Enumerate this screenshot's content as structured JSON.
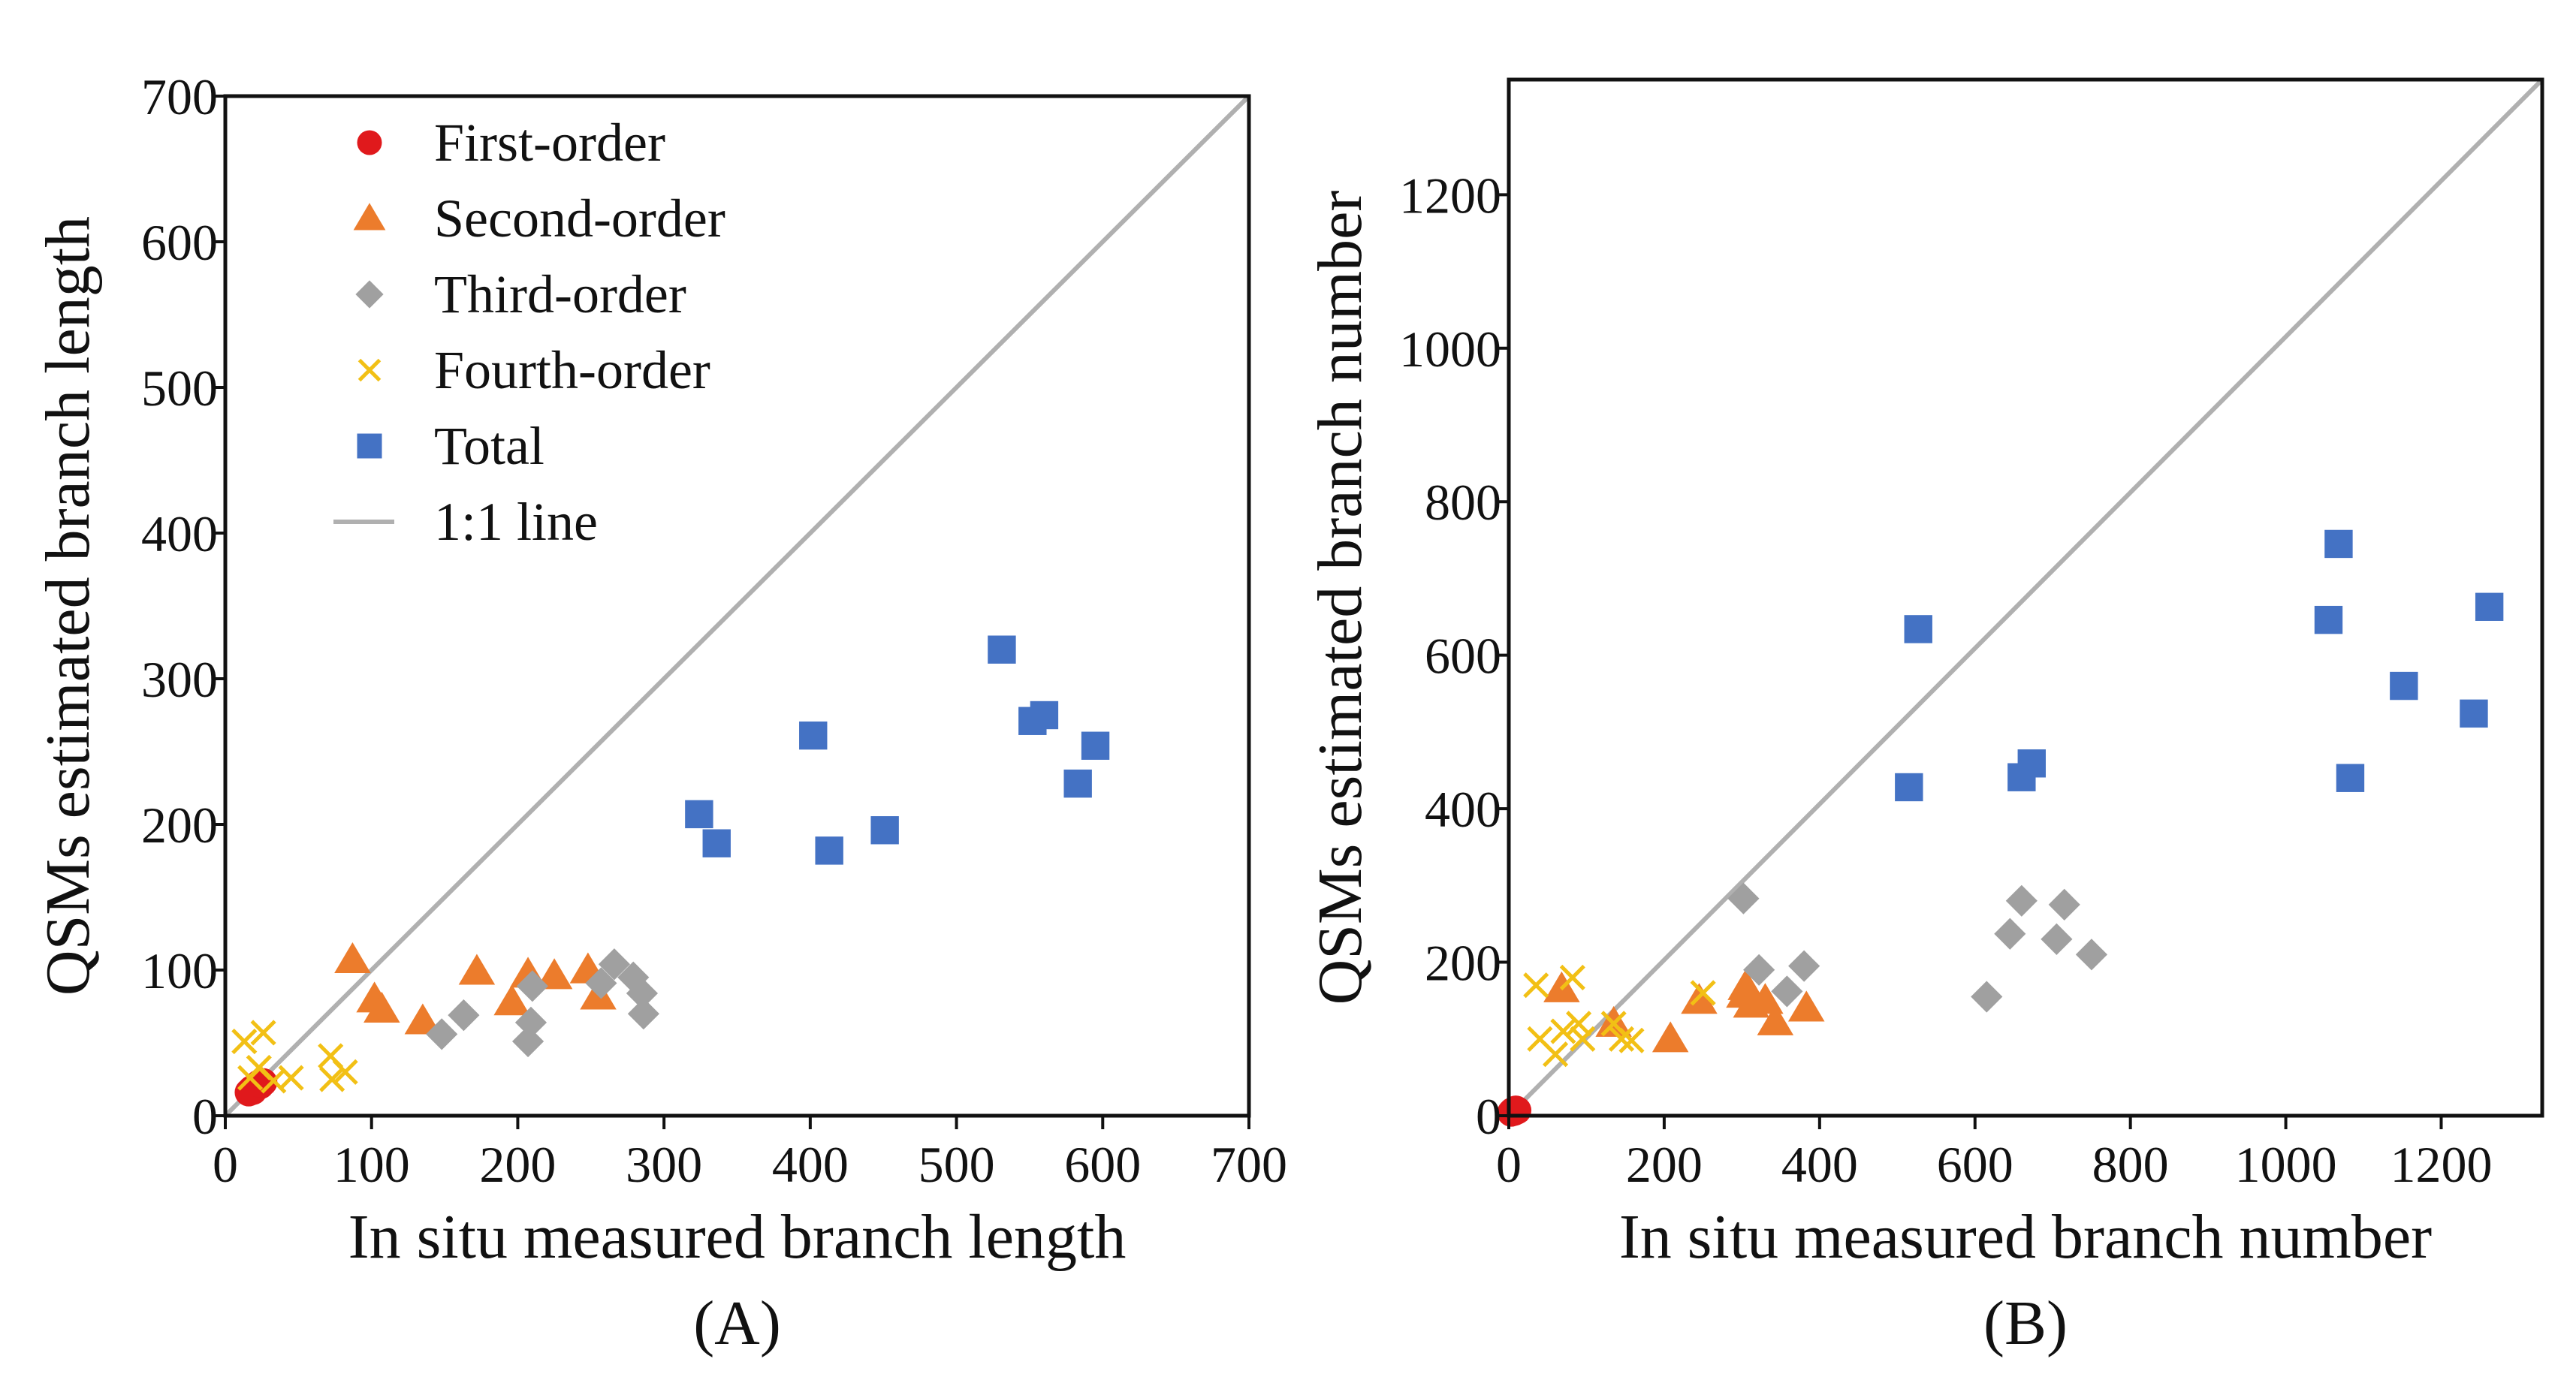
{
  "chart_data": [
    {
      "type": "scatter",
      "panel_label": "(A)",
      "xlabel": "In situ measured branch length",
      "ylabel": "QSMs estimated branch length",
      "xlim": [
        0,
        700
      ],
      "ylim": [
        0,
        700
      ],
      "xticks": [
        0,
        100,
        200,
        300,
        400,
        500,
        600,
        700
      ],
      "yticks": [
        0,
        100,
        200,
        300,
        400,
        500,
        600,
        700
      ],
      "reference_line": {
        "label": "1:1 line",
        "from": [
          0,
          0
        ],
        "to": [
          700,
          700
        ],
        "color": "#b0b0b0"
      },
      "legend": {
        "placement": "top-left",
        "entries": [
          {
            "label": "First-order",
            "marker": "circle",
            "color": "#e0191c"
          },
          {
            "label": "Second-order",
            "marker": "triangle",
            "color": "#ec7c2c"
          },
          {
            "label": "Third-order",
            "marker": "diamond",
            "color": "#a0a0a0"
          },
          {
            "label": "Fourth-order",
            "marker": "cross",
            "color": "#f2c015"
          },
          {
            "label": "Total",
            "marker": "square",
            "color": "#4472c4"
          },
          {
            "label": "1:1 line",
            "marker": "line",
            "color": "#b0b0b0"
          }
        ]
      },
      "series": [
        {
          "name": "First-order",
          "marker": "circle",
          "color": "#e0191c",
          "points": [
            [
              16,
              16
            ],
            [
              18,
              18
            ],
            [
              20,
              19
            ],
            [
              22,
              20
            ],
            [
              24,
              21
            ],
            [
              26,
              23
            ],
            [
              19,
              17
            ],
            [
              23,
              22
            ]
          ]
        },
        {
          "name": "Second-order",
          "marker": "triangle",
          "color": "#ec7c2c",
          "points": [
            [
              87,
              107
            ],
            [
              102,
              80
            ],
            [
              107,
              73
            ],
            [
              135,
              65
            ],
            [
              172,
              99
            ],
            [
              196,
              78
            ],
            [
              207,
              97
            ],
            [
              225,
              96
            ],
            [
              248,
              100
            ],
            [
              255,
              82
            ]
          ]
        },
        {
          "name": "Third-order",
          "marker": "diamond",
          "color": "#a0a0a0",
          "points": [
            [
              148,
              56
            ],
            [
              163,
              69
            ],
            [
              207,
              51
            ],
            [
              209,
              64
            ],
            [
              210,
              89
            ],
            [
              257,
              91
            ],
            [
              266,
              104
            ],
            [
              279,
              95
            ],
            [
              285,
              84
            ],
            [
              286,
              70
            ]
          ]
        },
        {
          "name": "Fourth-order",
          "marker": "cross",
          "color": "#f2c015",
          "points": [
            [
              13,
              51
            ],
            [
              17,
              26
            ],
            [
              23,
              33
            ],
            [
              26,
              57
            ],
            [
              33,
              24
            ],
            [
              45,
              26
            ],
            [
              72,
              41
            ],
            [
              73,
              25
            ],
            [
              82,
              30
            ]
          ]
        },
        {
          "name": "Total",
          "marker": "square",
          "color": "#4472c4",
          "points": [
            [
              324,
              207
            ],
            [
              336,
              187
            ],
            [
              402,
              261
            ],
            [
              413,
              182
            ],
            [
              451,
              196
            ],
            [
              531,
              320
            ],
            [
              552,
              271
            ],
            [
              560,
              275
            ],
            [
              583,
              228
            ],
            [
              595,
              254
            ]
          ]
        }
      ]
    },
    {
      "type": "scatter",
      "panel_label": "(B)",
      "xlabel": "In situ measured branch number",
      "ylabel": "QSMs estimated branch number",
      "xlim": [
        0,
        1330
      ],
      "ylim": [
        0,
        1350
      ],
      "xticks": [
        0,
        200,
        400,
        600,
        800,
        1000,
        1200
      ],
      "yticks": [
        0,
        200,
        400,
        600,
        800,
        1000,
        1200
      ],
      "reference_line": {
        "label": "1:1 line",
        "from": [
          0,
          0
        ],
        "to": [
          1330,
          1350
        ],
        "color": "#b0b0b0"
      },
      "series": [
        {
          "name": "First-order",
          "marker": "circle",
          "color": "#e0191c",
          "points": [
            [
              3,
              4
            ],
            [
              5,
              6
            ],
            [
              7,
              5
            ],
            [
              9,
              8
            ],
            [
              11,
              7
            ]
          ]
        },
        {
          "name": "Second-order",
          "marker": "triangle",
          "color": "#ec7c2c",
          "points": [
            [
              68,
              165
            ],
            [
              135,
              120
            ],
            [
              208,
              100
            ],
            [
              245,
              150
            ],
            [
              303,
              158
            ],
            [
              305,
              168
            ],
            [
              312,
              145
            ],
            [
              330,
              150
            ],
            [
              343,
              122
            ],
            [
              383,
              140
            ]
          ]
        },
        {
          "name": "Third-order",
          "marker": "diamond",
          "color": "#a0a0a0",
          "points": [
            [
              302,
              283
            ],
            [
              322,
              190
            ],
            [
              358,
              162
            ],
            [
              380,
              195
            ],
            [
              615,
              155
            ],
            [
              645,
              237
            ],
            [
              660,
              280
            ],
            [
              705,
              230
            ],
            [
              715,
              275
            ],
            [
              750,
              210
            ]
          ]
        },
        {
          "name": "Fourth-order",
          "marker": "cross",
          "color": "#f2c015",
          "points": [
            [
              35,
              170
            ],
            [
              40,
              100
            ],
            [
              60,
              80
            ],
            [
              70,
              110
            ],
            [
              82,
              180
            ],
            [
              90,
              120
            ],
            [
              95,
              100
            ],
            [
              135,
              120
            ],
            [
              145,
              100
            ],
            [
              158,
              98
            ],
            [
              250,
              160
            ]
          ]
        },
        {
          "name": "Total",
          "marker": "square",
          "color": "#4472c4",
          "points": [
            [
              515,
              428
            ],
            [
              527,
              634
            ],
            [
              660,
              441
            ],
            [
              673,
              459
            ],
            [
              1055,
              646
            ],
            [
              1068,
              745
            ],
            [
              1083,
              440
            ],
            [
              1152,
              560
            ],
            [
              1242,
              524
            ],
            [
              1262,
              663
            ]
          ]
        }
      ]
    }
  ]
}
